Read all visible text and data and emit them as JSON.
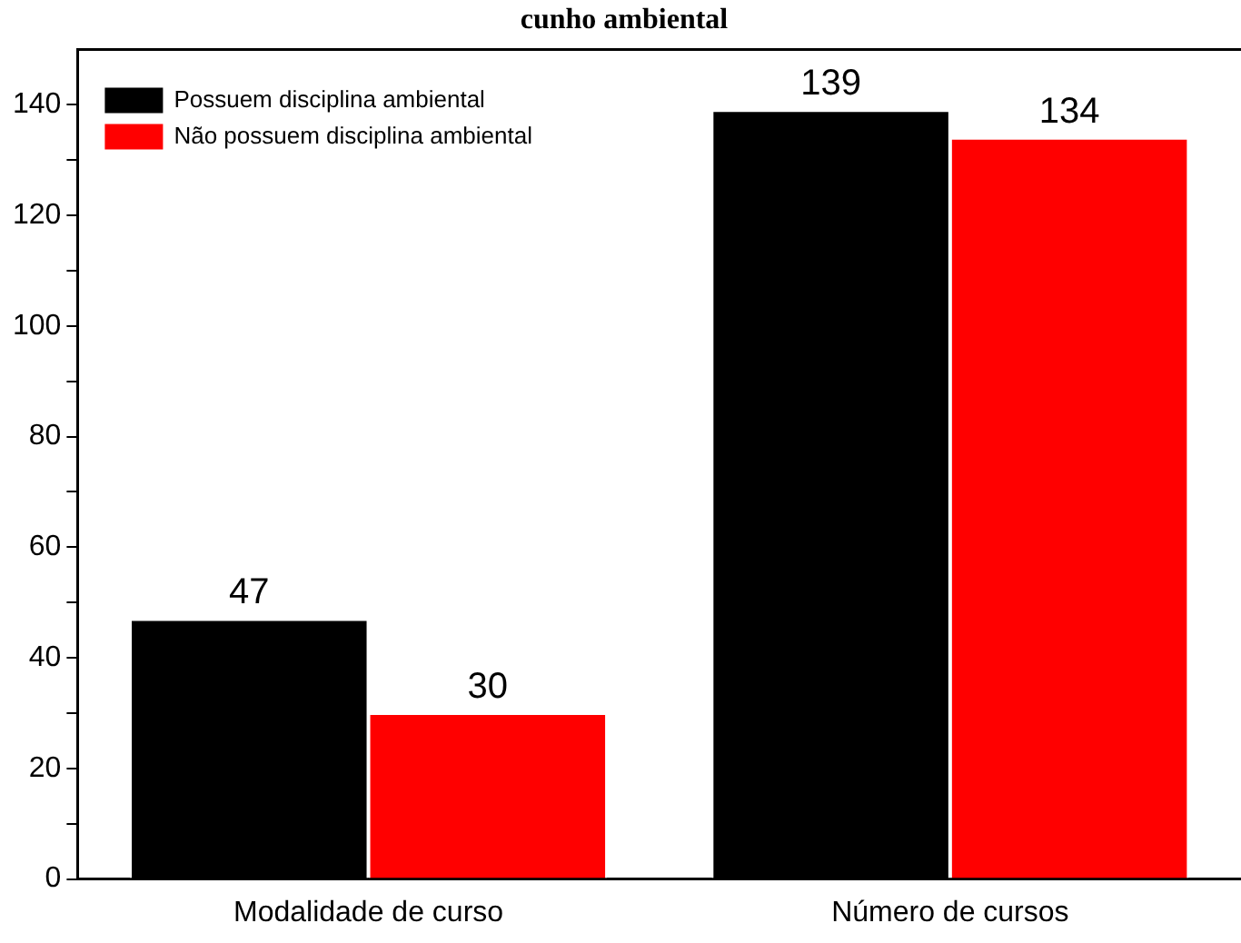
{
  "chart_data": {
    "type": "bar",
    "title": "cunho ambiental",
    "categories": [
      "Modalidade de curso",
      "Número de cursos"
    ],
    "series": [
      {
        "name": "Possuem disciplina ambiental",
        "color": "#000000",
        "values": [
          47,
          139
        ]
      },
      {
        "name": "Não possuem disciplina ambiental",
        "color": "#ff0000",
        "values": [
          30,
          134
        ]
      }
    ],
    "ylim": [
      0,
      150
    ],
    "yticks": [
      0,
      {
        "value": 10,
        "label": null
      },
      20,
      {
        "value": 30,
        "label": null
      },
      40,
      {
        "value": 50,
        "label": null
      },
      60,
      {
        "value": 70,
        "label": null
      },
      80,
      {
        "value": 90,
        "label": null
      },
      100,
      {
        "value": 110,
        "label": null
      },
      120,
      {
        "value": 130,
        "label": null
      },
      140
    ],
    "grid": false,
    "legend": "top left",
    "data_labels": true
  }
}
